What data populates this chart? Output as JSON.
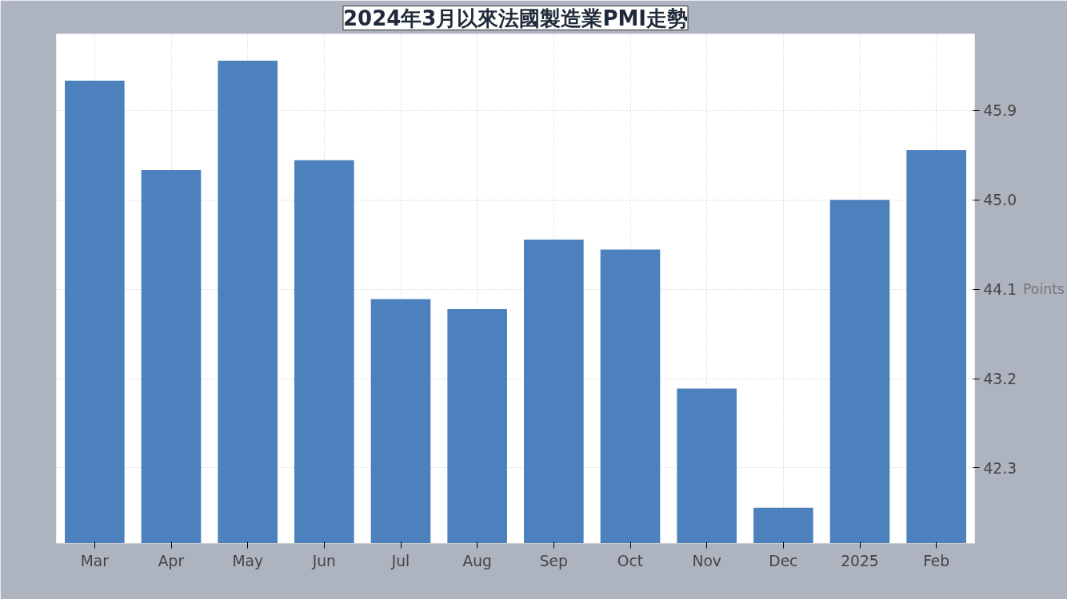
{
  "chart_data": {
    "type": "bar",
    "title": "2024年3月以來法國製造業PMI走勢",
    "ylabel": "Points",
    "categories": [
      "Mar",
      "Apr",
      "May",
      "Jun",
      "Jul",
      "Aug",
      "Sep",
      "Oct",
      "Nov",
      "Dec",
      "2025",
      "Feb"
    ],
    "values": [
      46.2,
      45.3,
      46.4,
      45.4,
      44.0,
      43.9,
      44.6,
      44.5,
      43.1,
      41.9,
      45.0,
      45.5
    ],
    "color": "#4d81bd",
    "ylim": [
      41.54,
      46.67
    ],
    "yticks": [
      42.3,
      43.2,
      44.1,
      {
        "value": 45,
        "label": "45.0"
      },
      45.9
    ],
    "grid": true
  }
}
